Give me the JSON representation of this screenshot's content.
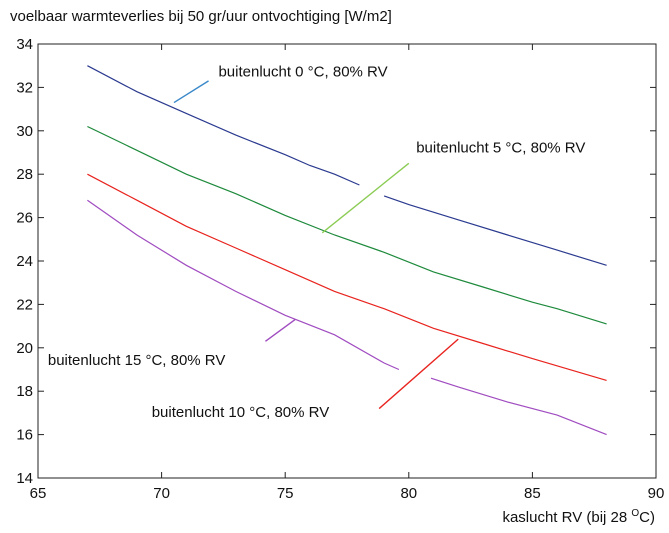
{
  "chart_data": {
    "type": "line",
    "title": "voelbaar warmteverlies bij 50 gr/uur ontvochtiging [W/m2]",
    "xlabel_main": "kaslucht RV (bij 28 ",
    "xlabel_sup": "O",
    "xlabel_end": "C)",
    "xlim": [
      65,
      90
    ],
    "ylim": [
      14,
      34
    ],
    "xticks": [
      65,
      70,
      75,
      80,
      85,
      90
    ],
    "yticks": [
      14,
      16,
      18,
      20,
      22,
      24,
      26,
      28,
      30,
      32,
      34
    ],
    "grid": false,
    "series": [
      {
        "name": "buitenlucht 0 °C, 80% RV",
        "color": "#2b3a8f",
        "segments": [
          [
            [
              67,
              33.0
            ],
            [
              69,
              31.8
            ],
            [
              71,
              30.8
            ],
            [
              73,
              29.8
            ],
            [
              75,
              28.9
            ],
            [
              76,
              28.4
            ],
            [
              77,
              28.0
            ],
            [
              78,
              27.5
            ]
          ],
          [
            [
              79,
              27.0
            ],
            [
              80,
              26.6
            ],
            [
              82,
              25.9
            ],
            [
              84,
              25.2
            ],
            [
              86,
              24.5
            ],
            [
              88,
              23.8
            ]
          ]
        ],
        "label_pos": [
          72.3,
          32.5
        ],
        "leader": [
          [
            70.5,
            31.3
          ],
          [
            71.9,
            32.3
          ]
        ],
        "leader_color": "#3a88c8"
      },
      {
        "name": "buitenlucht 5 °C, 80% RV",
        "color": "#1e8a3c",
        "segments": [
          [
            [
              67,
              30.2
            ],
            [
              69,
              29.1
            ],
            [
              71,
              28.0
            ],
            [
              73,
              27.1
            ],
            [
              75,
              26.1
            ],
            [
              77,
              25.2
            ],
            [
              79,
              24.4
            ],
            [
              81,
              23.5
            ],
            [
              83,
              22.8
            ],
            [
              85,
              22.1
            ],
            [
              86,
              21.8
            ],
            [
              88,
              21.1
            ]
          ]
        ],
        "label_pos": [
          80.3,
          29.0
        ],
        "leader": [
          [
            76.5,
            25.3
          ],
          [
            80.0,
            28.5
          ]
        ],
        "leader_color": "#8ccc55"
      },
      {
        "name": "buitenlucht 10 °C, 80% RV",
        "color": "#e8231e",
        "segments": [
          [
            [
              67,
              28.0
            ],
            [
              69,
              26.8
            ],
            [
              71,
              25.6
            ],
            [
              73,
              24.6
            ],
            [
              75,
              23.6
            ],
            [
              77,
              22.6
            ],
            [
              79,
              21.8
            ],
            [
              81,
              20.9
            ],
            [
              83,
              20.2
            ],
            [
              85,
              19.5
            ],
            [
              88,
              18.5
            ]
          ]
        ],
        "label_pos": [
          69.6,
          16.8
        ],
        "leader": [
          [
            78.8,
            17.2
          ],
          [
            82.0,
            20.4
          ]
        ],
        "leader_color": "#e8231e"
      },
      {
        "name": "buitenlucht 15 °C, 80% RV",
        "color": "#a04cc0",
        "segments": [
          [
            [
              67,
              26.8
            ],
            [
              69,
              25.2
            ],
            [
              71,
              23.8
            ],
            [
              73,
              22.6
            ],
            [
              75,
              21.5
            ],
            [
              77,
              20.6
            ],
            [
              79,
              19.3
            ],
            [
              79.6,
              19.0
            ]
          ],
          [
            [
              80.9,
              18.6
            ],
            [
              82,
              18.2
            ],
            [
              84,
              17.5
            ],
            [
              86,
              16.9
            ],
            [
              88,
              16.0
            ]
          ]
        ],
        "label_pos": [
          65.4,
          19.2
        ],
        "leader": [
          [
            74.2,
            20.3
          ],
          [
            75.4,
            21.3
          ]
        ],
        "leader_color": "#a04cc0"
      }
    ]
  }
}
